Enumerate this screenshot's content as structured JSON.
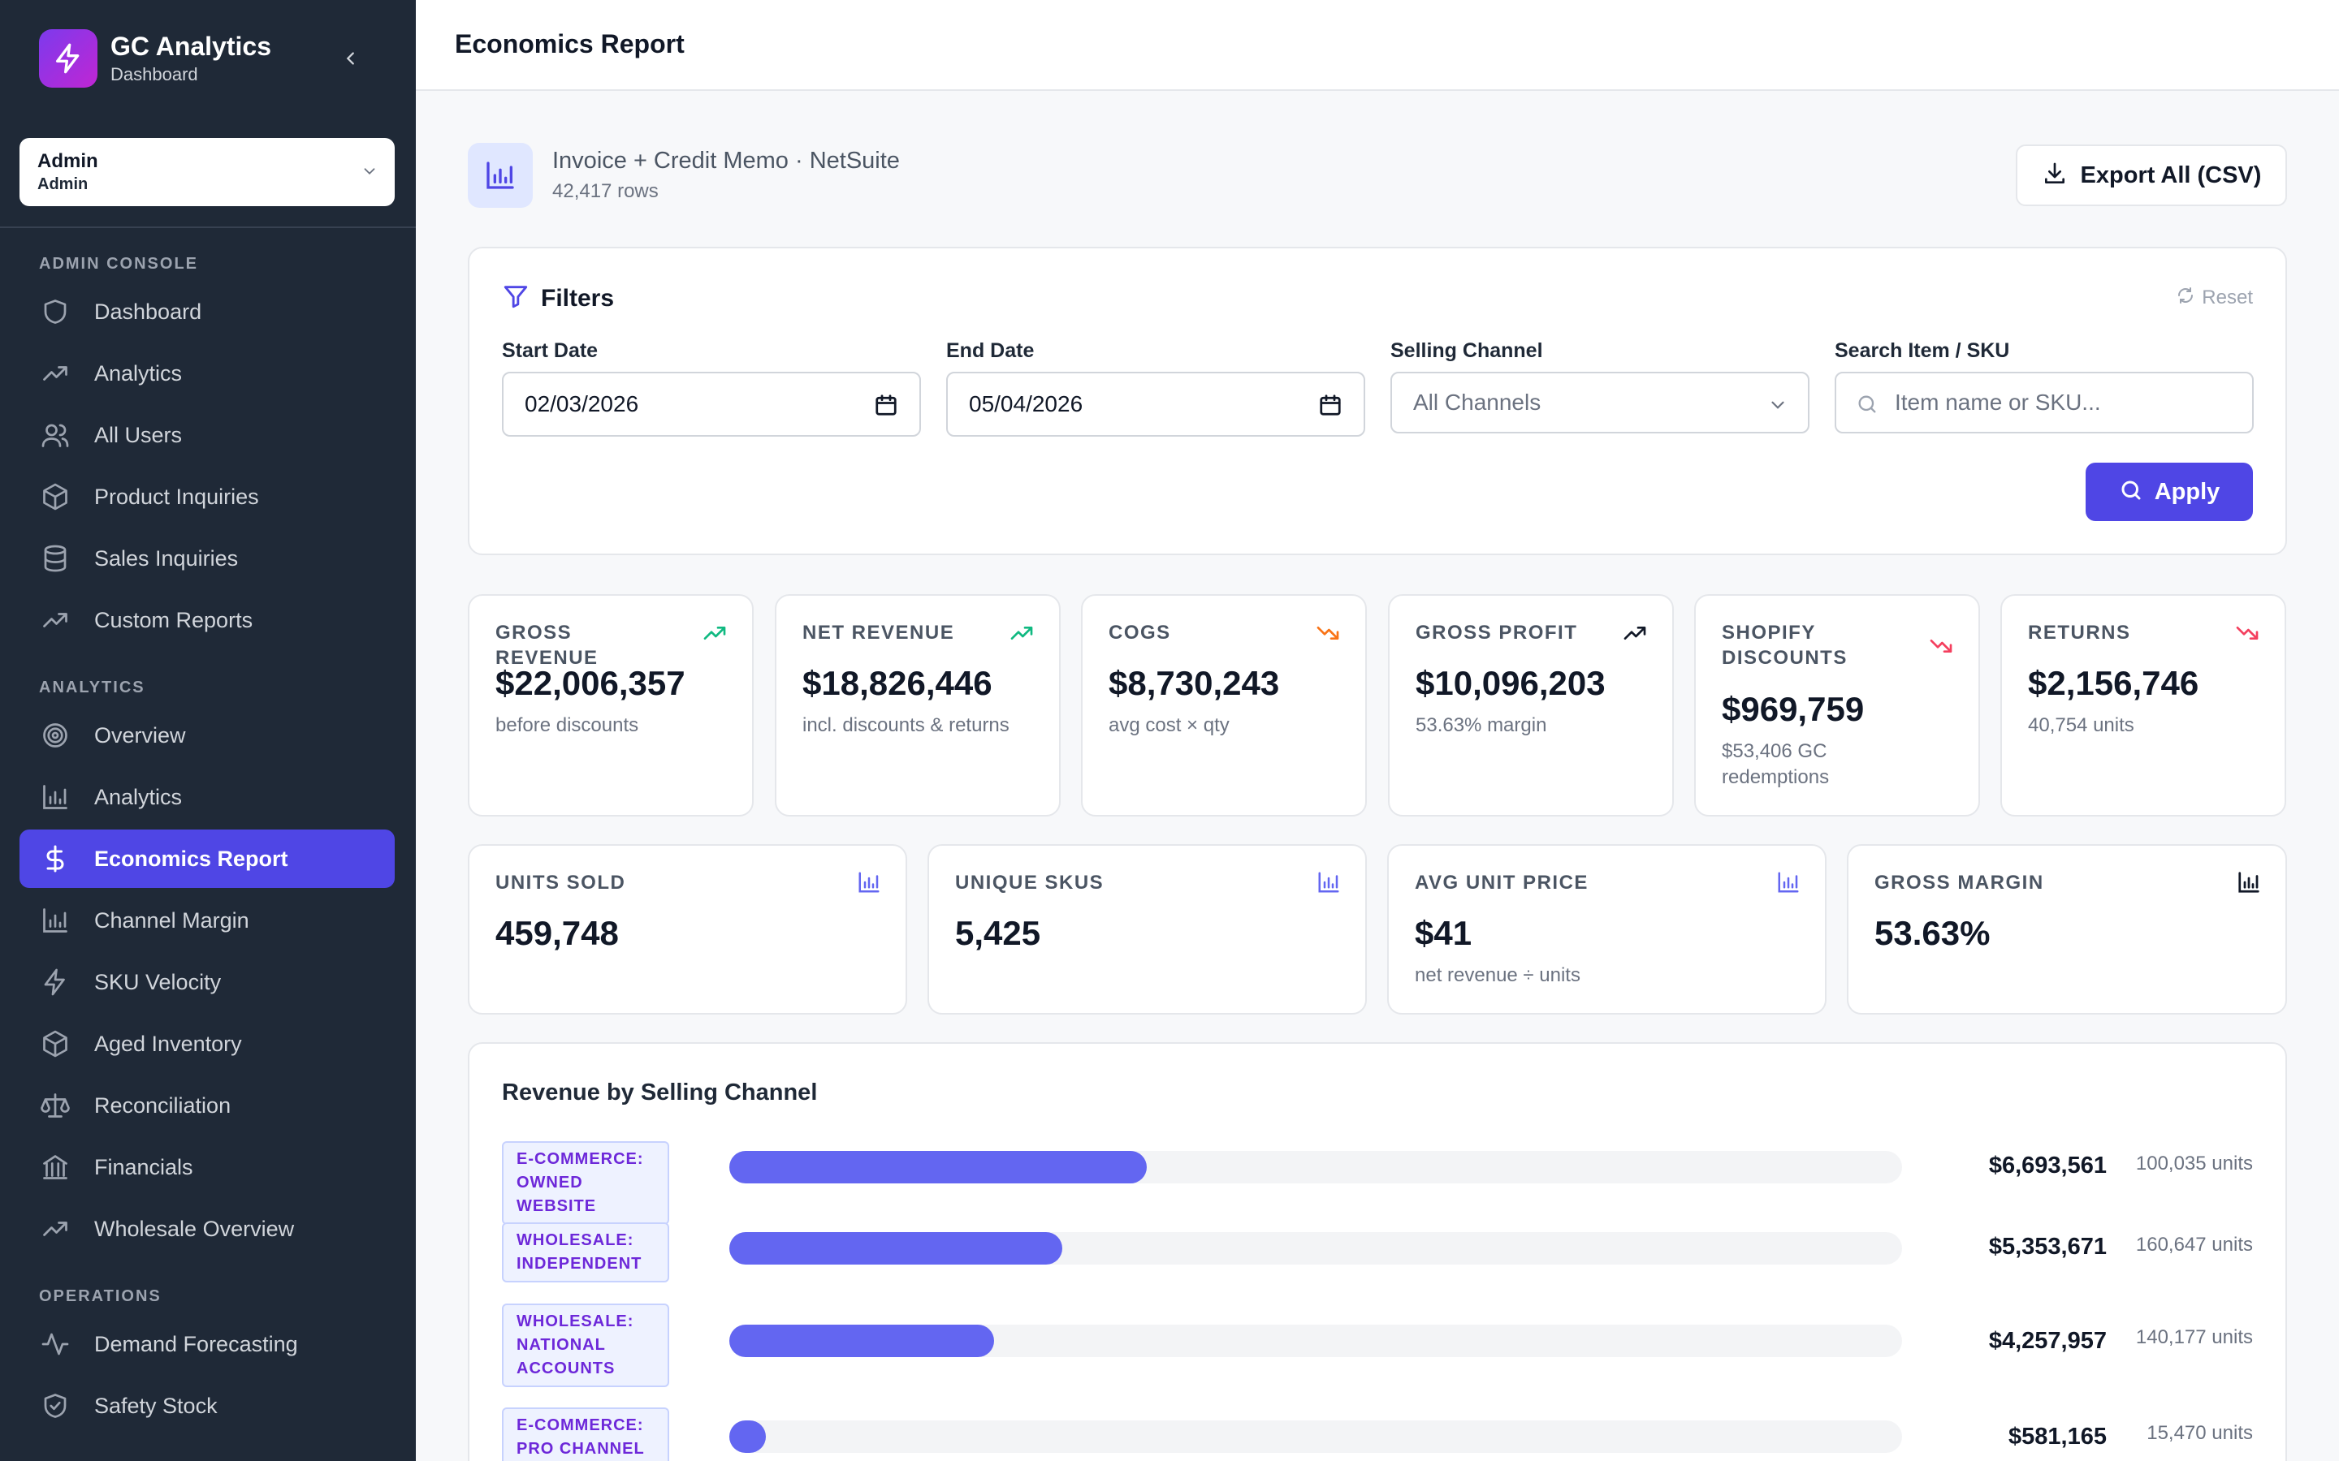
{
  "sidebar": {
    "brand_name": "GC Analytics",
    "brand_sub": "Dashboard",
    "role_name": "Admin",
    "role_sub": "Admin",
    "sections": {
      "admin": "ADMIN CONSOLE",
      "analytics": "ANALYTICS",
      "operations": "OPERATIONS"
    },
    "items": [
      {
        "label": "Dashboard",
        "icon": "shield-icon"
      },
      {
        "label": "Analytics",
        "icon": "trending-up-icon"
      },
      {
        "label": "All Users",
        "icon": "users-icon"
      },
      {
        "label": "Product Inquiries",
        "icon": "box-icon"
      },
      {
        "label": "Sales Inquiries",
        "icon": "database-icon"
      },
      {
        "label": "Custom Reports",
        "icon": "trending-up-icon"
      },
      {
        "label": "Overview",
        "icon": "target-icon"
      },
      {
        "label": "Analytics",
        "icon": "bar-chart-icon"
      },
      {
        "label": "Economics Report",
        "icon": "dollar-icon",
        "active": true
      },
      {
        "label": "Channel Margin",
        "icon": "bar-chart-icon"
      },
      {
        "label": "SKU Velocity",
        "icon": "lightning-icon"
      },
      {
        "label": "Aged Inventory",
        "icon": "box-icon"
      },
      {
        "label": "Reconciliation",
        "icon": "scale-icon"
      },
      {
        "label": "Financials",
        "icon": "bank-icon"
      },
      {
        "label": "Wholesale Overview",
        "icon": "trending-up-icon"
      },
      {
        "label": "Demand Forecasting",
        "icon": "activity-icon"
      },
      {
        "label": "Safety Stock",
        "icon": "shield-check-icon"
      }
    ]
  },
  "header": {
    "title": "Economics Report"
  },
  "source": {
    "title": "Invoice + Credit Memo · NetSuite",
    "rows": "42,417 rows",
    "export_label": "Export All (CSV)"
  },
  "filters": {
    "title": "Filters",
    "reset_label": "Reset",
    "start_label": "Start Date",
    "start_value": "02/03/2026",
    "end_label": "End Date",
    "end_value": "05/04/2026",
    "channel_label": "Selling Channel",
    "channel_value": "All Channels",
    "search_label": "Search Item / SKU",
    "search_placeholder": "Item name or SKU...",
    "apply_label": "Apply"
  },
  "kpis": [
    {
      "label": "GROSS REVENUE",
      "value": "$22,006,357",
      "sub": "before discounts",
      "trend": "up",
      "color": "#10b981"
    },
    {
      "label": "NET REVENUE",
      "value": "$18,826,446",
      "sub": "incl. discounts & returns",
      "trend": "up",
      "color": "#10b981"
    },
    {
      "label": "COGS",
      "value": "$8,730,243",
      "sub": "avg cost × qty",
      "trend": "down",
      "color": "#f97316"
    },
    {
      "label": "GROSS PROFIT",
      "value": "$10,096,203",
      "sub": "53.63% margin",
      "trend": "up",
      "color": "#111827"
    },
    {
      "label": "SHOPIFY DISCOUNTS",
      "value": "$969,759",
      "sub": "$53,406 GC redemptions",
      "trend": "down",
      "color": "#f43f5e"
    },
    {
      "label": "RETURNS",
      "value": "$2,156,746",
      "sub": "40,754 units",
      "trend": "down",
      "color": "#f43f5e"
    }
  ],
  "kpis2": [
    {
      "label": "UNITS SOLD",
      "value": "459,748",
      "sub": "",
      "color": "#6366f1"
    },
    {
      "label": "UNIQUE SKUS",
      "value": "5,425",
      "sub": "",
      "color": "#6366f1"
    },
    {
      "label": "AVG UNIT PRICE",
      "value": "$41",
      "sub": "net revenue ÷ units",
      "color": "#6366f1"
    },
    {
      "label": "GROSS MARGIN",
      "value": "53.63%",
      "sub": "",
      "color": "#111827"
    }
  ],
  "channels": {
    "title": "Revenue by Selling Channel",
    "rows": [
      {
        "name": "E-COMMERCE: OWNED WEBSITE",
        "revenue": "$6,693,561",
        "units": "100,035 units",
        "share": 0.356
      },
      {
        "name": "WHOLESALE: INDEPENDENT",
        "revenue": "$5,353,671",
        "units": "160,647 units",
        "share": 0.284
      },
      {
        "name": "WHOLESALE: NATIONAL ACCOUNTS",
        "revenue": "$4,257,957",
        "units": "140,177 units",
        "share": 0.226
      },
      {
        "name": "E-COMMERCE: PRO CHANNEL",
        "revenue": "$581,165",
        "units": "15,470 units",
        "share": 0.031
      }
    ]
  },
  "colors": {
    "sidebar_bg": "#1f2937",
    "accent": "#4f46e5",
    "bar": "#6366f1"
  }
}
